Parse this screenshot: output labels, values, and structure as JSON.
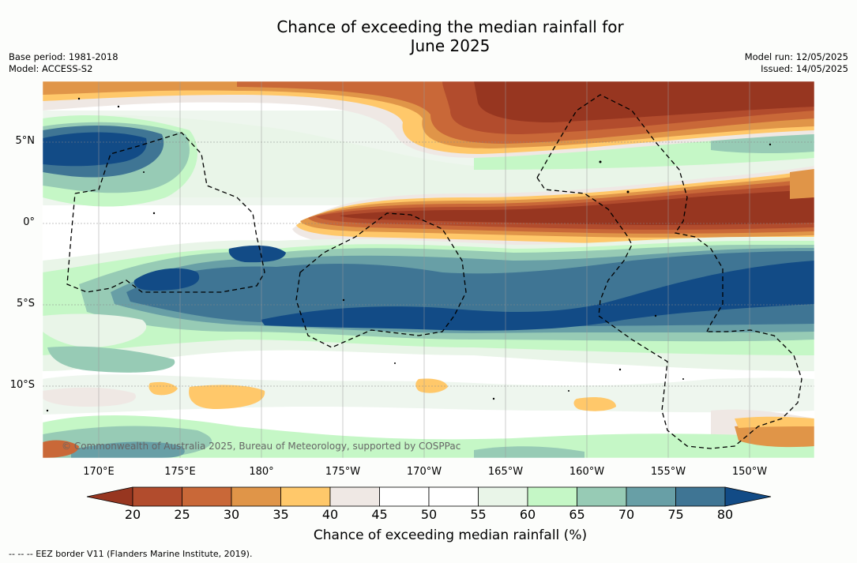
{
  "title": "Chance of exceeding the median rainfall for",
  "title_line2": "June 2025",
  "meta_left": {
    "base_period": "Base period: 1981-2018",
    "model": "Model: ACCESS-S2"
  },
  "meta_right": {
    "model_run": "Model run: 12/05/2025",
    "issued": "Issued: 14/05/2025"
  },
  "lat_labels": [
    "5°N",
    "0°",
    "5°S",
    "10°S"
  ],
  "lon_labels": [
    "170°E",
    "175°E",
    "180°",
    "175°W",
    "170°W",
    "165°W",
    "160°W",
    "155°W",
    "150°W"
  ],
  "copyright": "© Commonwealth of Australia 2025, Bureau of Meteorology, supported by COSPPac",
  "colorbar": {
    "ticks": [
      "20",
      "25",
      "30",
      "35",
      "40",
      "45",
      "50",
      "55",
      "60",
      "65",
      "70",
      "75",
      "80"
    ],
    "colors": [
      "#973620",
      "#b24c2d",
      "#c96838",
      "#e09548",
      "#ffc86a",
      "#efe8e4",
      "#ffffff",
      "#ffffff",
      "#e9f5e8",
      "#c5f7c6",
      "#97cbb5",
      "#689fa6",
      "#3f7594",
      "#124b86"
    ],
    "title": "Chance of exceeding median rainfall (%)"
  },
  "footnote": "--  --  -- EEZ border V11 (Flanders Marine Institute, 2019)."
}
